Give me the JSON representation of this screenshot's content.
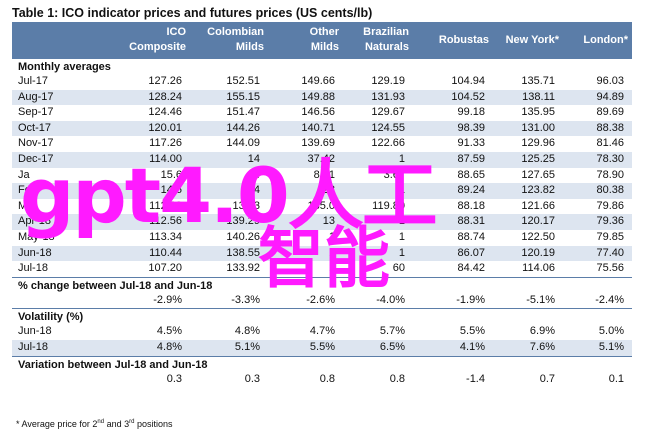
{
  "title": "Table 1:  ICO indicator prices and futures prices (US cents/lb)",
  "headers": [
    "",
    "ICO\nComposite",
    "Colombian\nMilds",
    "Other\nMilds",
    "Brazilian\nNaturals",
    "Robustas",
    "New York*",
    "London*"
  ],
  "sections": [
    {
      "label": "Monthly averages",
      "rows": [
        [
          "Jul-17",
          "127.26",
          "152.51",
          "149.66",
          "129.19",
          "104.94",
          "135.71",
          "96.03"
        ],
        [
          "Aug-17",
          "128.24",
          "155.15",
          "149.88",
          "131.93",
          "104.52",
          "138.11",
          "94.89"
        ],
        [
          "Sep-17",
          "124.46",
          "151.47",
          "146.56",
          "129.67",
          "99.18",
          "135.95",
          "89.69"
        ],
        [
          "Oct-17",
          "120.01",
          "144.26",
          "140.71",
          "124.55",
          "98.39",
          "131.00",
          "88.38"
        ],
        [
          "Nov-17",
          "117.26",
          "144.09",
          "139.69",
          "122.66",
          "91.33",
          "129.96",
          "81.46"
        ],
        [
          "Dec-17",
          "114.00",
          "14",
          "37.42",
          "1",
          "87.59",
          "125.25",
          "78.30"
        ],
        [
          "Ja",
          "15.6",
          "14",
          "8.81",
          "3.67",
          "88.65",
          "127.65",
          "78.90"
        ],
        [
          "Fe",
          "14.6",
          "14",
          "28",
          "1",
          "89.24",
          "123.82",
          "80.38"
        ],
        [
          "Ma",
          "112.99",
          "139.3",
          "135.0",
          "119.80",
          "88.18",
          "121.66",
          "79.86"
        ],
        [
          "Apr-18",
          "112.56",
          "139.29",
          "13",
          "1",
          "88.31",
          "120.17",
          "79.36"
        ],
        [
          "May-18",
          "113.34",
          "140.26",
          "1",
          "1",
          "88.74",
          "122.50",
          "79.85"
        ],
        [
          "Jun-18",
          "110.44",
          "138.55",
          "1",
          "1",
          "86.07",
          "120.19",
          "77.40"
        ],
        [
          "Jul-18",
          "107.20",
          "133.92",
          "1",
          "60",
          "84.42",
          "114.06",
          "75.56"
        ]
      ]
    },
    {
      "label": "% change between Jul-18 and Jun-18",
      "rows": [
        [
          "",
          "-2.9%",
          "-3.3%",
          "-2.6%",
          "-4.0%",
          "-1.9%",
          "-5.1%",
          "-2.4%"
        ]
      ]
    },
    {
      "label": "Volatility (%)",
      "rows": [
        [
          "Jun-18",
          "4.5%",
          "4.8%",
          "4.7%",
          "5.7%",
          "5.5%",
          "6.9%",
          "5.0%"
        ],
        [
          "Jul-18",
          "4.8%",
          "5.1%",
          "5.5%",
          "6.5%",
          "4.1%",
          "7.6%",
          "5.1%"
        ]
      ]
    },
    {
      "label": "Variation between Jul-18 and Jun-18",
      "rows": [
        [
          "",
          "0.3",
          "0.3",
          "0.8",
          "0.8",
          "-1.4",
          "0.7",
          "0.1"
        ]
      ]
    }
  ],
  "footnote": {
    "prefix": "* Average price for 2",
    "sup1": "nd",
    "middle": " and 3",
    "sup2": "rd",
    "suffix": " positions"
  },
  "watermark": {
    "line1": "gpt4.0人工",
    "line2": "智能"
  }
}
